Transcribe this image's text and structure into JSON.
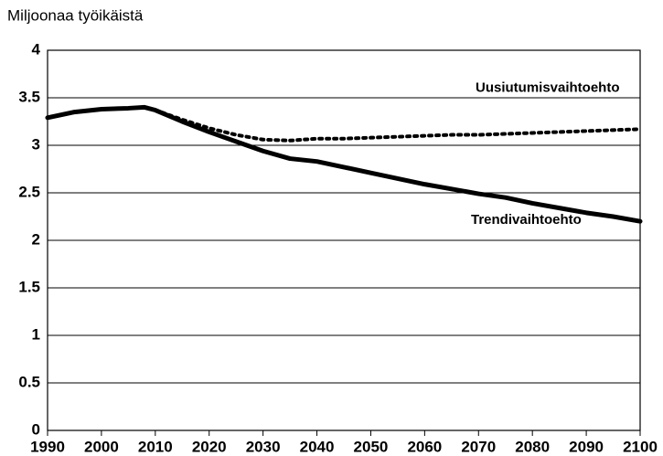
{
  "chart_data": {
    "type": "line",
    "y_axis_label": "Miljoonaa työikäistä",
    "x": [
      1990,
      1995,
      2000,
      2005,
      2008,
      2010,
      2015,
      2020,
      2025,
      2030,
      2035,
      2040,
      2045,
      2050,
      2055,
      2060,
      2065,
      2070,
      2075,
      2080,
      2085,
      2090,
      2095,
      2100
    ],
    "series": [
      {
        "name": "Trendivaihtoehto",
        "color": "#000000",
        "style": "solid",
        "values": [
          3.29,
          3.35,
          3.38,
          3.39,
          3.4,
          3.37,
          3.25,
          3.14,
          3.04,
          2.94,
          2.86,
          2.83,
          2.77,
          2.71,
          2.65,
          2.59,
          2.54,
          2.49,
          2.45,
          2.39,
          2.34,
          2.29,
          2.25,
          2.2
        ]
      },
      {
        "name": "Uusiutumisvaihtoehto",
        "color": "#000000",
        "style": "dotted",
        "values": [
          null,
          null,
          null,
          null,
          null,
          3.37,
          3.27,
          3.18,
          3.11,
          3.06,
          3.05,
          3.07,
          3.07,
          3.08,
          3.09,
          3.1,
          3.11,
          3.11,
          3.12,
          3.13,
          3.14,
          3.15,
          3.16,
          3.17
        ]
      }
    ],
    "xlim": [
      1990,
      2100
    ],
    "xticks": [
      1990,
      2000,
      2010,
      2020,
      2030,
      2040,
      2050,
      2060,
      2070,
      2080,
      2090,
      2100
    ],
    "ylim": [
      0,
      4
    ],
    "yticks": [
      0,
      0.5,
      1,
      1.5,
      2,
      2.5,
      3,
      3.5,
      4
    ],
    "grid": true
  }
}
